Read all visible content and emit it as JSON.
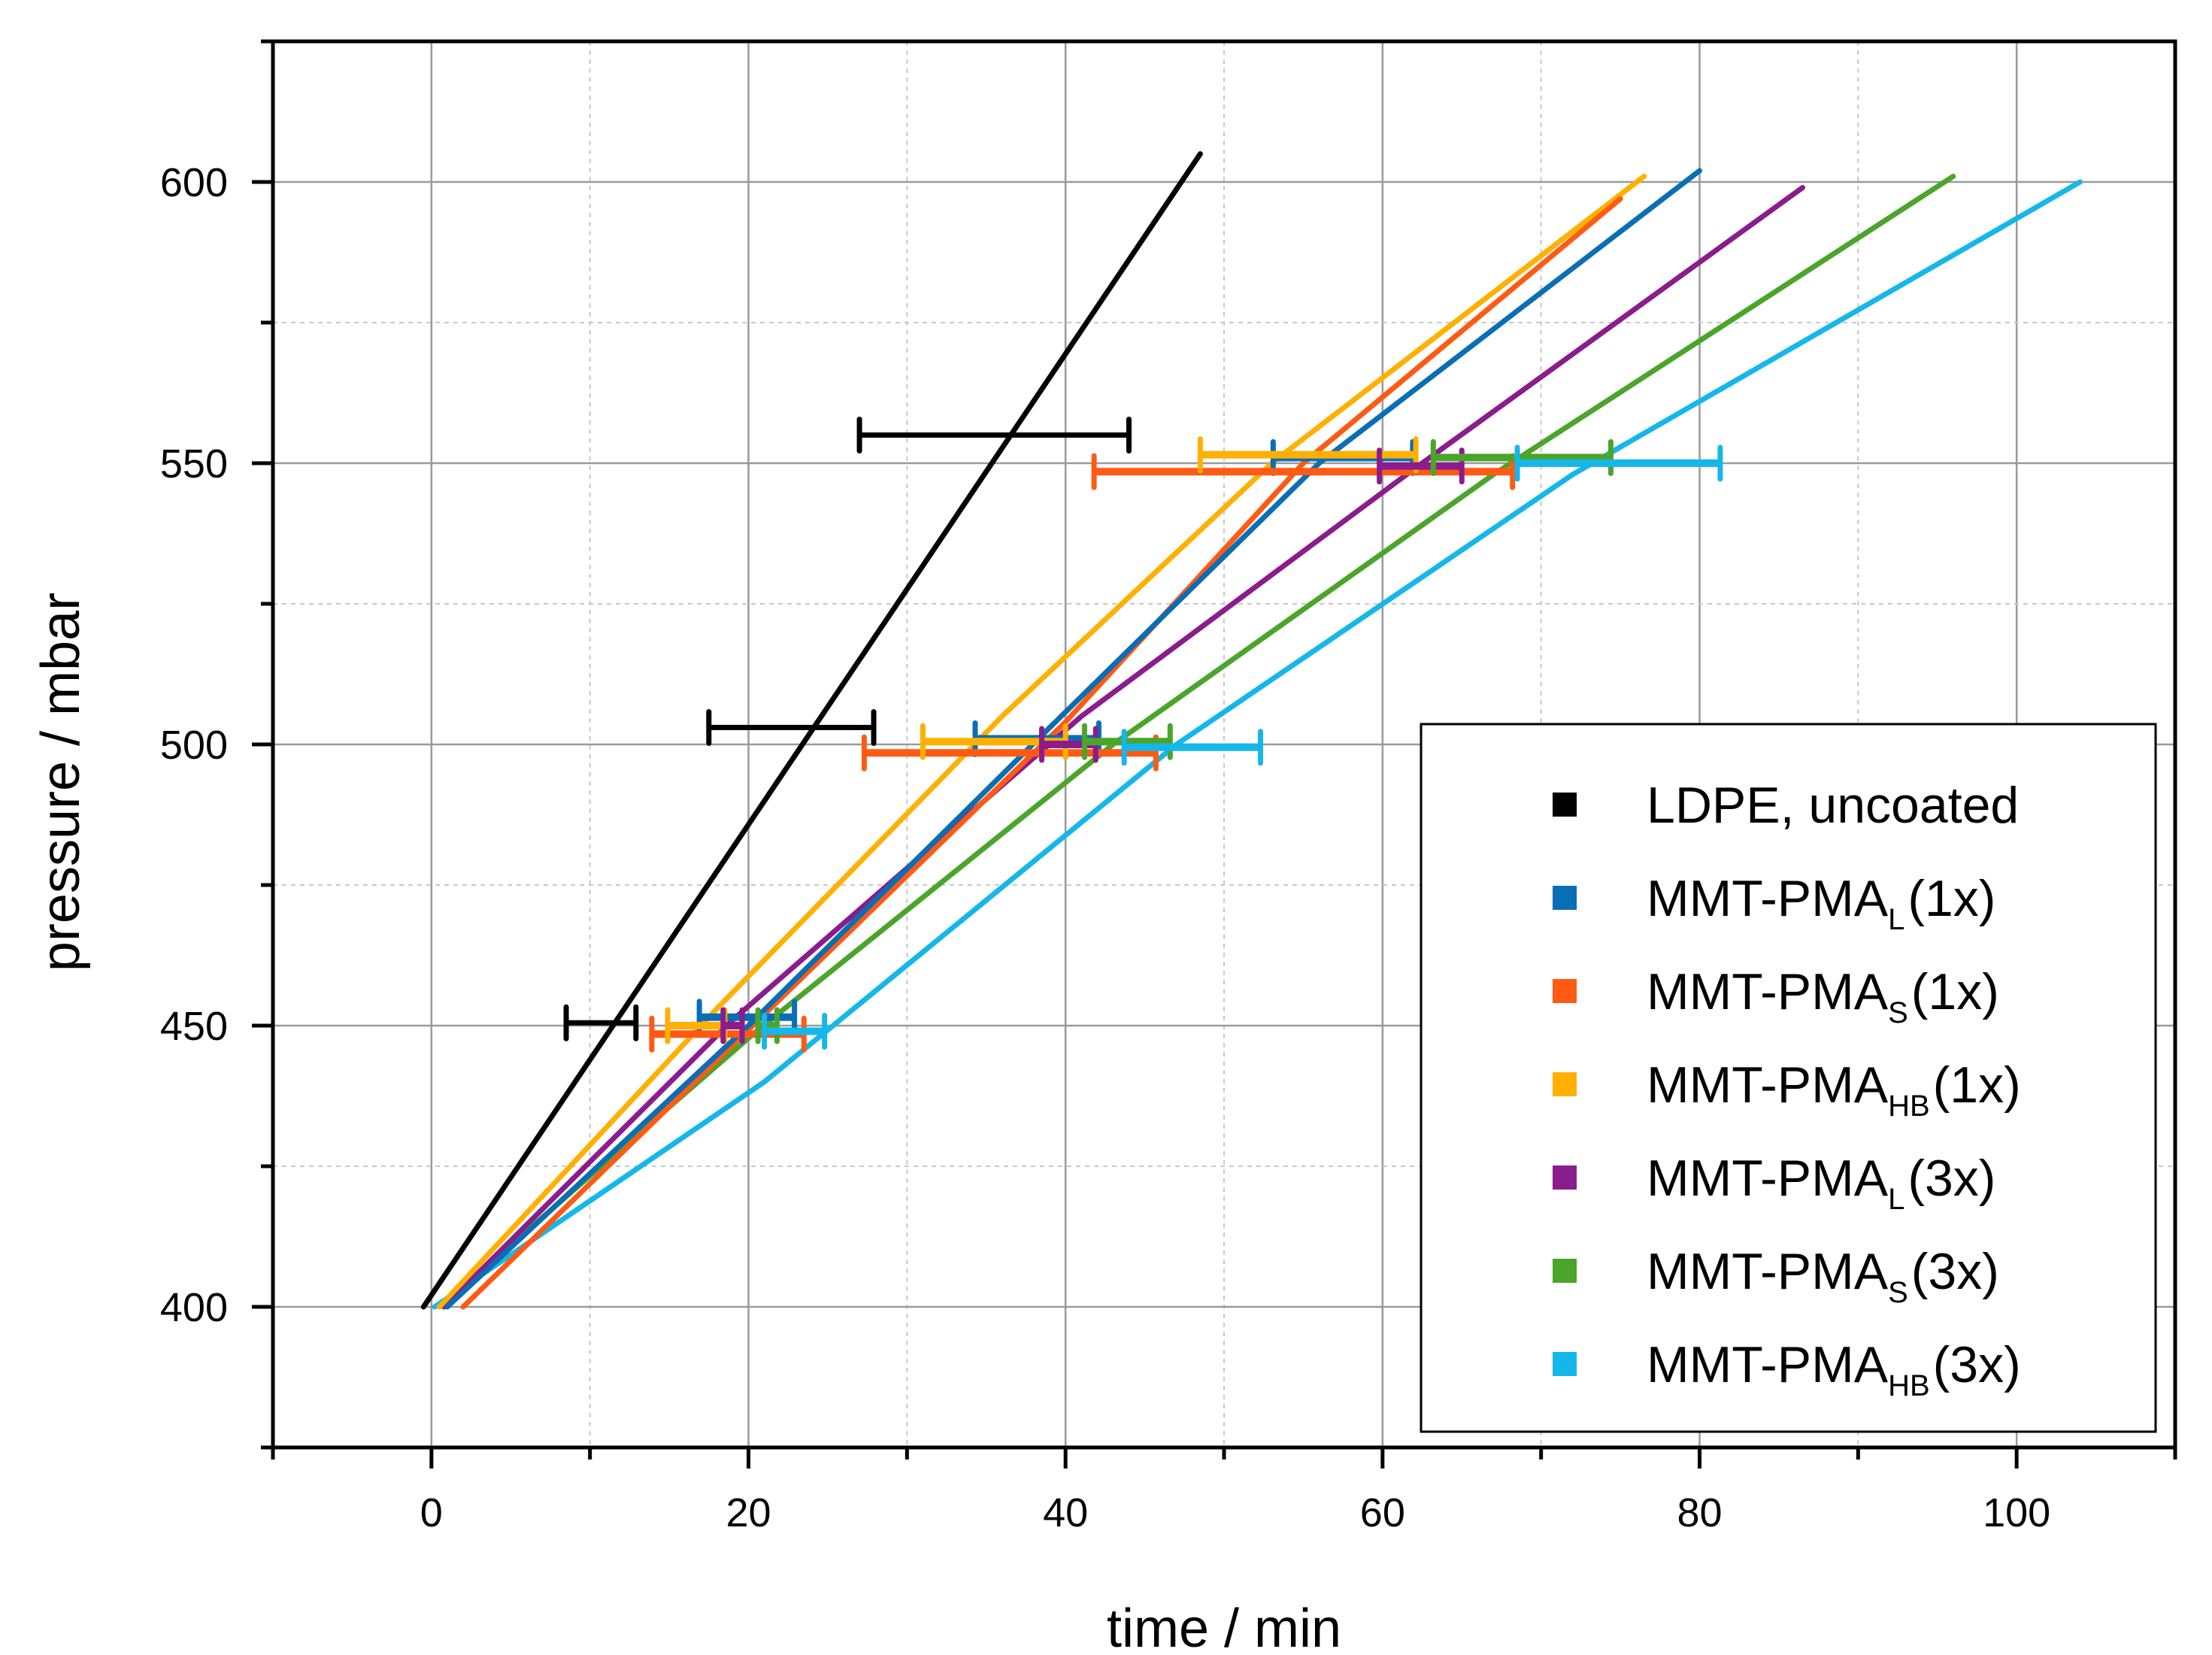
{
  "chart_data": {
    "type": "line",
    "xlabel": "time / min",
    "ylabel": "pressure / mbar",
    "xlim": [
      -10,
      110
    ],
    "ylim": [
      375,
      625
    ],
    "grid": true,
    "legend_position": "bottom-right",
    "x_ticks": [
      0,
      20,
      40,
      60,
      80,
      100
    ],
    "x_tick_labels": [
      "0",
      "20",
      "40",
      "60",
      "80",
      "100"
    ],
    "y_ticks": [
      400,
      450,
      500,
      550,
      600
    ],
    "y_tick_labels": [
      "400",
      "450",
      "500",
      "550",
      "600"
    ],
    "series": [
      {
        "name": "LDPE, uncoated",
        "legend_main": "LDPE, uncoated",
        "legend_sub": "",
        "legend_suffix": "",
        "color": "#000000",
        "points": [
          [
            -0.5,
            400
          ],
          [
            48.5,
            605
          ]
        ],
        "errorbars": [
          {
            "x": 10.7,
            "y": 450.5,
            "xerr": 2.2
          },
          {
            "x": 22.7,
            "y": 503,
            "xerr": 5.2
          },
          {
            "x": 35.5,
            "y": 555,
            "xerr": 8.5
          }
        ]
      },
      {
        "name": "MMT-PMA L (1x)",
        "legend_main": "MMT-PMA",
        "legend_sub": "L",
        "legend_suffix": "(1x)",
        "color": "#0a6eb5",
        "points": [
          [
            1.0,
            400
          ],
          [
            20,
            450
          ],
          [
            39,
            503
          ],
          [
            56,
            550
          ],
          [
            80,
            602
          ]
        ],
        "errorbars": [
          {
            "x": 19.9,
            "y": 451.5,
            "xerr": 3.0
          },
          {
            "x": 38.2,
            "y": 501,
            "xerr": 3.9
          },
          {
            "x": 57.5,
            "y": 551,
            "xerr": 4.4
          }
        ]
      },
      {
        "name": "MMT-PMA S (1x)",
        "legend_main": "MMT-PMA",
        "legend_sub": "S",
        "legend_suffix": "(1x)",
        "color": "#ff5a14",
        "points": [
          [
            2.0,
            400
          ],
          [
            21,
            452
          ],
          [
            40,
            504
          ],
          [
            55,
            550
          ],
          [
            75,
            597
          ]
        ],
        "errorbars": [
          {
            "x": 18.7,
            "y": 448.5,
            "xerr": 4.8
          },
          {
            "x": 36.5,
            "y": 498.5,
            "xerr": 9.2
          },
          {
            "x": 55.0,
            "y": 548.5,
            "xerr": 13.2
          }
        ]
      },
      {
        "name": "MMT-PMA HB (1x)",
        "legend_main": "MMT-PMA",
        "legend_sub": "HB",
        "legend_suffix": "(1x)",
        "color": "#ffb000",
        "points": [
          [
            0.5,
            400
          ],
          [
            18,
            453
          ],
          [
            36,
            505
          ],
          [
            53,
            550
          ],
          [
            76.5,
            601
          ]
        ],
        "errorbars": [
          {
            "x": 16.7,
            "y": 450,
            "xerr": 1.8
          },
          {
            "x": 35.5,
            "y": 500.5,
            "xerr": 4.5
          },
          {
            "x": 55.3,
            "y": 551.5,
            "xerr": 6.8
          }
        ]
      },
      {
        "name": "MMT-PMA L (3x)",
        "legend_main": "MMT-PMA",
        "legend_sub": "L",
        "legend_suffix": "(3x)",
        "color": "#8b1c8c",
        "points": [
          [
            0.8,
            400
          ],
          [
            19,
            451
          ],
          [
            41,
            505
          ],
          [
            62,
            549
          ],
          [
            86.5,
            599
          ]
        ],
        "errorbars": [
          {
            "x": 19.0,
            "y": 450,
            "xerr": 0.6
          },
          {
            "x": 40.2,
            "y": 500,
            "xerr": 1.7
          },
          {
            "x": 62.4,
            "y": 549.5,
            "xerr": 2.6
          }
        ]
      },
      {
        "name": "MMT-PMA S (3x)",
        "legend_main": "MMT-PMA",
        "legend_sub": "S",
        "legend_suffix": "(3x)",
        "color": "#4aa52a",
        "points": [
          [
            0.5,
            400
          ],
          [
            20.5,
            449
          ],
          [
            43,
            500
          ],
          [
            67,
            548
          ],
          [
            96,
            601
          ]
        ],
        "errorbars": [
          {
            "x": 21.2,
            "y": 450,
            "xerr": 0.6
          },
          {
            "x": 43.9,
            "y": 500.5,
            "xerr": 2.7
          },
          {
            "x": 68.8,
            "y": 551,
            "xerr": 5.6
          }
        ]
      },
      {
        "name": "MMT-PMA HB (3x)",
        "legend_main": "MMT-PMA",
        "legend_sub": "HB",
        "legend_suffix": "(3x)",
        "color": "#15b7ea",
        "points": [
          [
            0.2,
            400
          ],
          [
            21,
            440
          ],
          [
            47,
            500
          ],
          [
            72,
            548
          ],
          [
            104,
            600
          ]
        ],
        "errorbars": [
          {
            "x": 22.9,
            "y": 449,
            "xerr": 1.9
          },
          {
            "x": 48.0,
            "y": 499.5,
            "xerr": 4.3
          },
          {
            "x": 74.9,
            "y": 550,
            "xerr": 6.4
          }
        ]
      }
    ]
  }
}
